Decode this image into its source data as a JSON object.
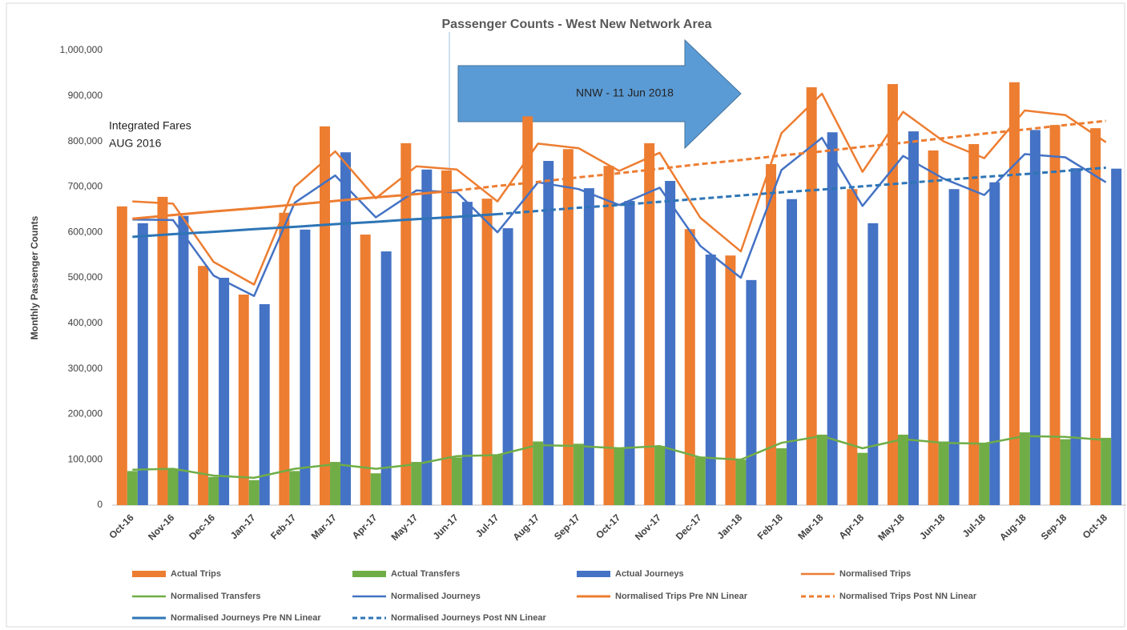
{
  "chart_data": {
    "type": "combo",
    "title": "Passenger Counts - West New Network Area",
    "y_label": "Monthly Passenger Counts",
    "annotations": [
      "Integrated Fares",
      "AUG 2016",
      "NNW -  11 Jun 2018"
    ],
    "categories": [
      "Oct-16",
      "Nov-16",
      "Dec-16",
      "Jan-17",
      "Feb-17",
      "Mar-17",
      "Apr-17",
      "May-17",
      "Jun-17",
      "Jul-17",
      "Aug-17",
      "Sep-17",
      "Oct-17",
      "Nov-17",
      "Dec-17",
      "Jan-18",
      "Feb-18",
      "Mar-18",
      "Apr-18",
      "May-18",
      "Jun-18",
      "Jul-18",
      "Aug-18",
      "Sep-18",
      "Oct-18"
    ],
    "ylim": [
      0,
      1000000
    ],
    "yticks": [
      0,
      {
        "value": 100000,
        "label": "100,000"
      },
      {
        "value": 200000,
        "label": "200,000"
      },
      {
        "value": 300000,
        "label": "300,000"
      },
      {
        "value": 400000,
        "label": "400,000"
      },
      {
        "value": 500000,
        "label": "500,000"
      },
      {
        "value": 600000,
        "label": "600,000"
      },
      {
        "value": 700000,
        "label": "700,000"
      },
      {
        "value": 800000,
        "label": "800,000"
      },
      {
        "value": 900000,
        "label": "900,000"
      },
      {
        "value": 1000000,
        "label": "1,000,000"
      }
    ],
    "grid": false,
    "series": [
      {
        "name": "Actual Trips",
        "kind": "bar",
        "color": "#ed7d31",
        "values": [
          657000,
          678000,
          526000,
          463000,
          643000,
          833000,
          595000,
          796000,
          736000,
          674000,
          855000,
          783000,
          746000,
          796000,
          607000,
          549000,
          750000,
          919000,
          695000,
          926000,
          780000,
          794000,
          930000,
          836000,
          829000
        ]
      },
      {
        "name": "Actual Transfers",
        "kind": "bar",
        "color": "#70ad47",
        "values": [
          75000,
          80000,
          62000,
          55000,
          75000,
          95000,
          70000,
          95000,
          105000,
          110000,
          140000,
          135000,
          125000,
          130000,
          105000,
          100000,
          125000,
          155000,
          115000,
          155000,
          140000,
          135000,
          160000,
          145000,
          148000
        ]
      },
      {
        "name": "Actual Journeys",
        "kind": "bar",
        "color": "#4472c4",
        "values": [
          620000,
          636000,
          500000,
          442000,
          606000,
          776000,
          558000,
          738000,
          667000,
          609000,
          757000,
          697000,
          669000,
          713000,
          551000,
          495000,
          673000,
          820000,
          620000,
          822000,
          695000,
          710000,
          825000,
          741000,
          740000
        ]
      },
      {
        "name": "Normalised Trips",
        "kind": "line",
        "color": "#ed7d31",
        "values": [
          668000,
          663000,
          535000,
          485000,
          700000,
          778000,
          675000,
          745000,
          738000,
          668000,
          795000,
          785000,
          735000,
          775000,
          632000,
          558000,
          818000,
          905000,
          733000,
          865000,
          800000,
          763000,
          868000,
          858000,
          798000
        ]
      },
      {
        "name": "Normalised Transfers",
        "kind": "line",
        "color": "#70ad47",
        "values": [
          78000,
          80000,
          65000,
          60000,
          80000,
          90000,
          80000,
          90000,
          108000,
          110000,
          132000,
          130000,
          125000,
          130000,
          105000,
          100000,
          137000,
          152000,
          125000,
          145000,
          137000,
          135000,
          152000,
          150000,
          143000
        ]
      },
      {
        "name": "Normalised Journeys",
        "kind": "line",
        "color": "#4472c4",
        "values": [
          628000,
          627000,
          505000,
          460000,
          665000,
          725000,
          633000,
          692000,
          688000,
          600000,
          710000,
          695000,
          660000,
          698000,
          570000,
          500000,
          737000,
          808000,
          658000,
          768000,
          718000,
          682000,
          772000,
          765000,
          710000
        ]
      },
      {
        "name": "Normalised Trips Pre NN Linear",
        "kind": "line",
        "dashed": false,
        "trend": true,
        "color": "#ed7d31",
        "values": [
          630000,
          638000,
          646000,
          653000,
          661000,
          669000,
          677000,
          684000,
          692000,
          null,
          null,
          null,
          null,
          null,
          null,
          null,
          null,
          null,
          null,
          null,
          null,
          null,
          null,
          null,
          null
        ]
      },
      {
        "name": "Normalised Trips Post NN Linear",
        "kind": "line",
        "dashed": true,
        "trend": true,
        "color": "#ed7d31",
        "values": [
          null,
          null,
          null,
          null,
          null,
          null,
          null,
          null,
          692000,
          702000,
          711000,
          721000,
          730000,
          740000,
          750000,
          759000,
          769000,
          778000,
          788000,
          797000,
          807000,
          817000,
          826000,
          836000,
          845000
        ]
      },
      {
        "name": "Normalised Journeys Pre NN Linear",
        "kind": "line",
        "dashed": false,
        "trend": true,
        "color": "#2e75b6",
        "values": [
          590000,
          596000,
          601000,
          607000,
          612000,
          618000,
          623000,
          629000,
          634000,
          640000,
          null,
          null,
          null,
          null,
          null,
          null,
          null,
          null,
          null,
          null,
          null,
          null,
          null,
          null,
          null
        ]
      },
      {
        "name": "Normalised Journeys Post NN Linear",
        "kind": "line",
        "dashed": true,
        "trend": true,
        "color": "#2e75b6",
        "values": [
          null,
          null,
          null,
          null,
          null,
          null,
          null,
          null,
          null,
          640000,
          647000,
          654000,
          660000,
          667000,
          674000,
          681000,
          688000,
          694000,
          701000,
          708000,
          715000,
          722000,
          728000,
          735000,
          742000
        ]
      }
    ]
  }
}
